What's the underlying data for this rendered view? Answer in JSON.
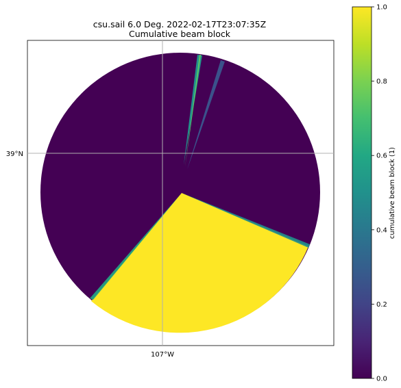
{
  "title": {
    "line1": "csu.sail 6.0 Deg. 2022-02-17T23:07:35Z",
    "line2": "Cumulative beam block"
  },
  "chart_data": {
    "type": "heatmap",
    "projection": "polar radar PPI on lat/lon map",
    "title": "csu.sail 6.0 Deg. 2022-02-17T23:07:35Z\nCumulative beam block",
    "lat_ticks": [
      "39°N"
    ],
    "lon_ticks": [
      "107°W"
    ],
    "grid": true,
    "colorbar": {
      "label": "cumulative beam block (1)",
      "colormap": "viridis",
      "range": [
        0,
        1
      ],
      "ticks": [
        0.0,
        0.2,
        0.4,
        0.6,
        0.8,
        1.0
      ],
      "tick_labels": [
        "0.0",
        "0.2",
        "0.4",
        "0.6",
        "0.8",
        "1.0"
      ],
      "location": "right"
    },
    "sectors": [
      {
        "from_az": 130,
        "to_az": 235,
        "value": 1.0
      },
      {
        "from_az": 20,
        "to_az": 22,
        "value": 0.15
      },
      {
        "from_az": 9,
        "to_az": 11,
        "value": 0.55
      },
      {
        "from_az": 10,
        "to_az": 12,
        "value": 0.45
      }
    ],
    "background_value": 0.0
  },
  "colors": {
    "v0": "#440154",
    "v02": "#3b528b",
    "v04": "#21918c",
    "v06": "#5ec962",
    "v1": "#fde725"
  }
}
